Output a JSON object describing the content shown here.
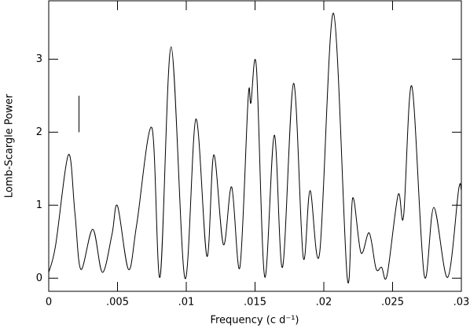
{
  "chart_data": {
    "type": "line",
    "xlabel": "Frequency (c d⁻¹)",
    "ylabel": "Lomb-Scargle Power",
    "xlim": [
      0,
      0.03
    ],
    "ylim": [
      -0.18,
      3.8
    ],
    "xticks": [
      0,
      {
        "value": 0.005,
        "label": ".005"
      },
      {
        "value": 0.01,
        "label": ".01"
      },
      {
        "value": 0.015,
        "label": ".015"
      },
      {
        "value": 0.02,
        "label": ".02"
      },
      {
        "value": 0.025,
        "label": ".025"
      },
      {
        "value": 0.03,
        "label": ".03"
      }
    ],
    "yticks": [
      0,
      1,
      2,
      3
    ],
    "color": "#000000",
    "x": [
      0,
      0.0005,
      0.00143,
      0.0019,
      0.00234,
      0.0032,
      0.0039,
      0.0046,
      0.005,
      0.0058,
      0.0064,
      0.0075,
      0.0081,
      0.0089,
      0.0099,
      0.0107,
      0.0115,
      0.012,
      0.0127,
      0.0133,
      0.0139,
      0.0145,
      0.0147,
      0.0151,
      0.0157,
      0.0164,
      0.017,
      0.0178,
      0.0185,
      0.019,
      0.0197,
      0.0207,
      0.0217,
      0.0221,
      0.0227,
      0.0233,
      0.0238,
      0.0242,
      0.0246,
      0.0254,
      0.0258,
      0.0264,
      0.0273,
      0.028,
      0.029,
      0.0298,
      0.03
    ],
    "values": [
      0.08,
      0.45,
      1.69,
      0.9,
      0.12,
      0.67,
      0.08,
      0.6,
      0.99,
      0.12,
      0.74,
      2.06,
      0.02,
      3.17,
      0.0,
      2.18,
      0.3,
      1.69,
      0.46,
      1.25,
      0.15,
      2.47,
      2.4,
      2.89,
      0.02,
      1.96,
      0.15,
      2.67,
      0.29,
      1.2,
      0.35,
      3.63,
      0.01,
      1.1,
      0.35,
      0.62,
      0.13,
      0.15,
      0.04,
      1.14,
      0.85,
      2.63,
      0.04,
      0.97,
      0.01,
      1.21,
      1.2
    ],
    "error_bar": {
      "x": 0.0022,
      "y": [
        2.0,
        2.5
      ]
    }
  }
}
